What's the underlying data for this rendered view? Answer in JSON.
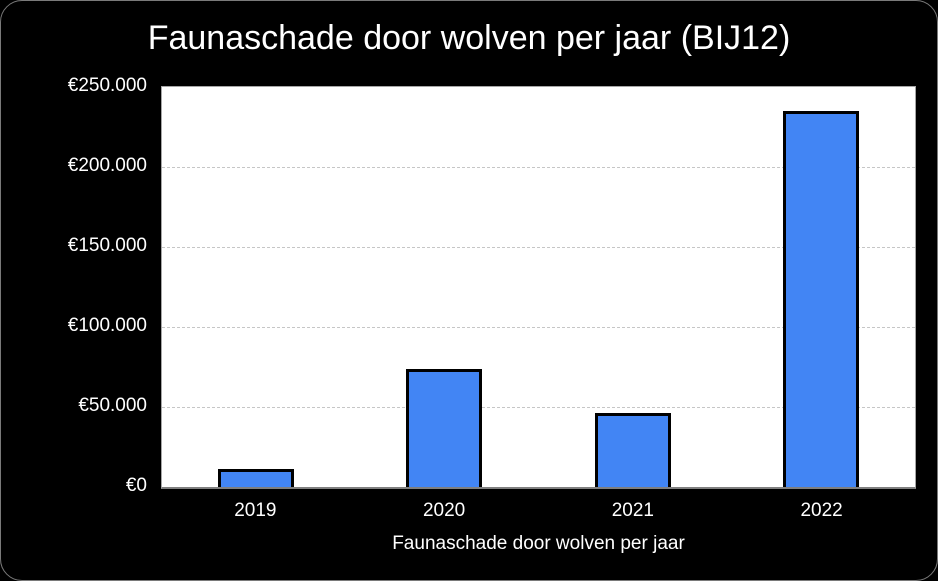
{
  "chart_data": {
    "type": "bar",
    "title": "Faunaschade door wolven per jaar (BIJ12)",
    "categories": [
      "2019",
      "2020",
      "2021",
      "2022"
    ],
    "values": [
      11000,
      74000,
      46000,
      235000
    ],
    "xlabel": "Faunaschade door wolven per jaar",
    "ylabel": "",
    "ylim": [
      0,
      250000
    ],
    "ytick_interval": 50000,
    "ytick_labels_top_to_bottom": [
      "€250.000",
      "€200.000",
      "€150.000",
      "€100.000",
      "€50.000",
      "€0"
    ],
    "grid": "horizontal",
    "legend": "none",
    "colors": {
      "page_background": "#000000",
      "plot_background": "#ffffff",
      "bar_fill": "#4285f4",
      "bar_border": "#000000",
      "text": "#ffffff",
      "gridline": "#c6c6c6",
      "card_border": "#7a7a7a"
    }
  }
}
